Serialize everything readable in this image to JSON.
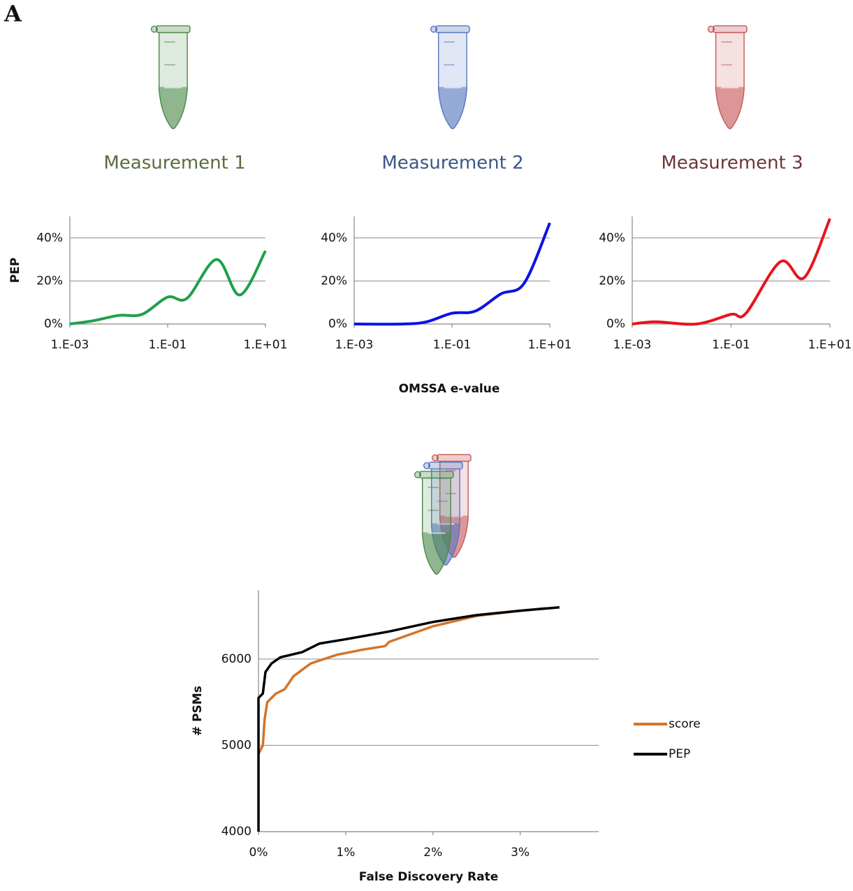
{
  "panel_label": "A",
  "shared_xlabel": "OMSSA e-value",
  "chart_data": [
    {
      "type": "line",
      "title": "Measurement 1",
      "title_color": "#5b6b3f",
      "ylabel": "PEP",
      "x": [
        0.001,
        0.003,
        0.01,
        0.03,
        0.1,
        0.25,
        1,
        3,
        10
      ],
      "values": [
        0,
        1.5,
        4,
        4.5,
        12.5,
        12,
        30,
        13.5,
        34
      ],
      "color": "#1fa04a",
      "xlog": true,
      "smooth": true,
      "xlim": [
        0.001,
        10
      ],
      "xticks": [
        {
          "value": 0.001,
          "label": "1.E-03"
        },
        {
          "value": 0.1,
          "label": "1.E-01"
        },
        {
          "value": 10,
          "label": "1.E+01"
        }
      ],
      "ylim": [
        0,
        50
      ],
      "yticks": [
        {
          "value": 0,
          "label": "0%"
        },
        {
          "value": 20,
          "label": "20%"
        },
        {
          "value": 40,
          "label": "40%"
        }
      ],
      "grid": true
    },
    {
      "type": "line",
      "title": "Measurement 2",
      "title_color": "#3a5686",
      "x": [
        0.001,
        0.01,
        0.03,
        0.1,
        0.3,
        1,
        3,
        10
      ],
      "values": [
        0,
        0,
        1,
        5,
        6,
        14,
        19,
        47
      ],
      "color": "#0a12e6",
      "xlog": true,
      "smooth": true,
      "xlim": [
        0.001,
        10
      ],
      "xticks": [
        {
          "value": 0.001,
          "label": "1.E-03"
        },
        {
          "value": 0.1,
          "label": "1.E-01"
        },
        {
          "value": 10,
          "label": "1.E+01"
        }
      ],
      "ylim": [
        0,
        50
      ],
      "yticks": [
        {
          "value": 0,
          "label": "0%"
        },
        {
          "value": 20,
          "label": "20%"
        },
        {
          "value": 40,
          "label": "40%"
        }
      ],
      "grid": true
    },
    {
      "type": "line",
      "title": "Measurement 3",
      "title_color": "#6e3535",
      "x": [
        0.001,
        0.003,
        0.02,
        0.1,
        0.2,
        1,
        3,
        10
      ],
      "values": [
        0,
        1,
        0,
        4.5,
        5,
        29,
        21.5,
        49
      ],
      "color": "#e8141b",
      "xlog": true,
      "smooth": true,
      "xlim": [
        0.001,
        10
      ],
      "xticks": [
        {
          "value": 0.001,
          "label": "1.E-03"
        },
        {
          "value": 0.1,
          "label": "1.E-01"
        },
        {
          "value": 10,
          "label": "1.E+01"
        }
      ],
      "ylim": [
        0,
        50
      ],
      "yticks": [
        {
          "value": 0,
          "label": "0%"
        },
        {
          "value": 20,
          "label": "20%"
        },
        {
          "value": 40,
          "label": "40%"
        }
      ],
      "grid": true
    },
    {
      "type": "line",
      "xlabel": "False Discovery Rate",
      "ylabel": "# PSMs",
      "series": [
        {
          "name": "score",
          "color": "#d2742a",
          "x": [
            0,
            0.05,
            0.07,
            0.1,
            0.2,
            0.3,
            0.4,
            0.6,
            0.9,
            1.2,
            1.45,
            1.5,
            2.0,
            2.5,
            3.0,
            3.3
          ],
          "values": [
            4900,
            5000,
            5300,
            5500,
            5600,
            5650,
            5800,
            5950,
            6050,
            6110,
            6150,
            6200,
            6380,
            6500,
            6560,
            6590
          ]
        },
        {
          "name": "PEP",
          "color": "#000000",
          "x": [
            0,
            0,
            0.05,
            0.08,
            0.15,
            0.25,
            0.5,
            0.7,
            1.0,
            1.5,
            2.0,
            2.5,
            3.0,
            3.45
          ],
          "values": [
            4000,
            5550,
            5600,
            5850,
            5950,
            6020,
            6080,
            6180,
            6230,
            6320,
            6430,
            6510,
            6560,
            6600
          ]
        }
      ],
      "xlim": [
        0,
        3.9
      ],
      "xticks": [
        {
          "value": 0,
          "label": "0%"
        },
        {
          "value": 1,
          "label": "1%"
        },
        {
          "value": 2,
          "label": "2%"
        },
        {
          "value": 3,
          "label": "3%"
        }
      ],
      "ylim": [
        4000,
        6800
      ],
      "yticks": [
        4000,
        5000,
        6000
      ],
      "grid": true,
      "legend": "right"
    }
  ]
}
